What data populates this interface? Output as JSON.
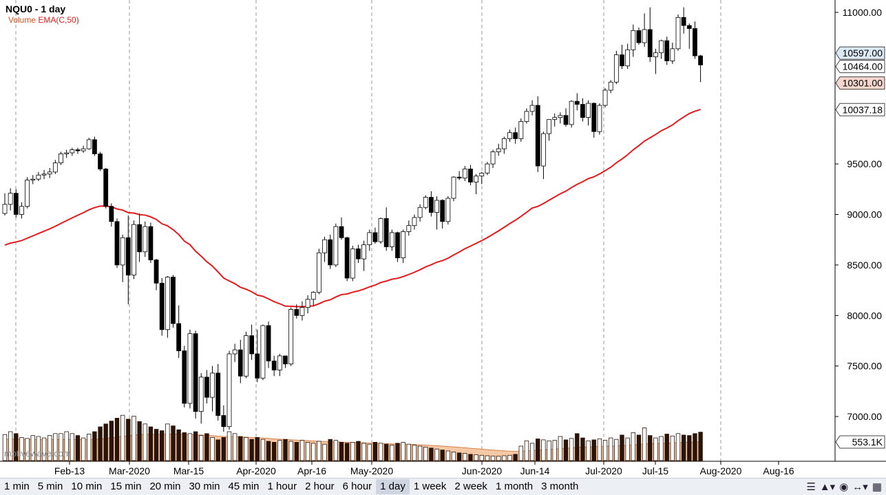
{
  "legend": {
    "symbol": "NQU0 - 1 day",
    "volume_label": "Volume",
    "ema_label": "EMA(C,50)"
  },
  "watermark": "motivewave.com",
  "colors": {
    "ema": "#e8191c",
    "volume_fill": "#f6c9a6",
    "volume_line": "#d2814a",
    "volume_bar": "#2b1407",
    "up_body": "#ffffff",
    "down_body": "#000000",
    "price_badge_blue": "#dbe8f6",
    "price_badge_red": "#f6d5cd",
    "grid": "#9a9a9a"
  },
  "toolbar": {
    "timeframes": [
      "1 min",
      "5 min",
      "10 min",
      "15 min",
      "20 min",
      "30 min",
      "45 min",
      "1 hour",
      "2 hour",
      "6 hour",
      "1 day",
      "1 week",
      "2 week",
      "1 month",
      "3 month"
    ],
    "active": "1 day",
    "icons": [
      "menu-icon",
      "chart-type-icon",
      "eye-icon",
      "scale-icon",
      "toolbox-icon"
    ]
  },
  "chart_data": {
    "type": "candlestick",
    "title": "NQU0 - 1 day",
    "ylim": [
      6800,
      11100
    ],
    "y_ticks": [
      "11000.00",
      "9500.00",
      "9000.00",
      "8500.00",
      "8000.00",
      "7500.00",
      "7000.00"
    ],
    "x_tick_labels": [
      "Feb-13",
      "Mar-2020",
      "Mar-15",
      "Apr-2020",
      "Apr-16",
      "May-2020",
      "Jun-2020",
      "Jun-14",
      "Jul-2020",
      "Jul-15",
      "Aug-2020",
      "Aug-16"
    ],
    "price_badges": [
      {
        "label": "10597.00",
        "value": 10597,
        "style": "blue"
      },
      {
        "label": "10464.00",
        "value": 10464,
        "style": "white"
      },
      {
        "label": "10301.00",
        "value": 10301,
        "style": "red"
      },
      {
        "label": "10037.18",
        "value": 10037.18,
        "style": "white"
      }
    ],
    "volume_badge": "553.1K",
    "candles": [
      [
        9010,
        9210,
        8990,
        9100
      ],
      [
        9100,
        9260,
        9040,
        9210
      ],
      [
        9210,
        9250,
        8970,
        9000
      ],
      [
        9000,
        9120,
        8960,
        9080
      ],
      [
        9080,
        9370,
        9060,
        9340
      ],
      [
        9340,
        9390,
        9300,
        9350
      ],
      [
        9350,
        9420,
        9330,
        9390
      ],
      [
        9390,
        9440,
        9350,
        9400
      ],
      [
        9400,
        9460,
        9360,
        9420
      ],
      [
        9420,
        9540,
        9400,
        9510
      ],
      [
        9510,
        9620,
        9490,
        9600
      ],
      [
        9600,
        9640,
        9560,
        9610
      ],
      [
        9610,
        9660,
        9580,
        9640
      ],
      [
        9640,
        9660,
        9600,
        9630
      ],
      [
        9630,
        9680,
        9610,
        9650
      ],
      [
        9650,
        9760,
        9640,
        9740
      ],
      [
        9740,
        9770,
        9580,
        9600
      ],
      [
        9600,
        9620,
        9430,
        9450
      ],
      [
        9450,
        9460,
        9060,
        9080
      ],
      [
        9080,
        9110,
        8880,
        8930
      ],
      [
        8930,
        8960,
        8470,
        8500
      ],
      [
        8500,
        8800,
        8330,
        8770
      ],
      [
        8770,
        8990,
        8110,
        8400
      ],
      [
        8400,
        8940,
        8360,
        8900
      ],
      [
        8900,
        9010,
        8530,
        8630
      ],
      [
        8630,
        8930,
        8580,
        8880
      ],
      [
        8880,
        8920,
        8520,
        8550
      ],
      [
        8550,
        8560,
        8250,
        8320
      ],
      [
        8320,
        8370,
        7800,
        7860
      ],
      [
        7860,
        8390,
        7780,
        8380
      ],
      [
        8380,
        8400,
        7880,
        7920
      ],
      [
        7920,
        8100,
        7580,
        7650
      ],
      [
        7650,
        7700,
        7090,
        7130
      ],
      [
        7130,
        7860,
        7080,
        7820
      ],
      [
        7820,
        7850,
        6980,
        7050
      ],
      [
        7050,
        7430,
        6930,
        7390
      ],
      [
        7390,
        7460,
        7130,
        7190
      ],
      [
        7190,
        7500,
        7050,
        7430
      ],
      [
        7430,
        7520,
        6960,
        7010
      ],
      [
        7010,
        7110,
        6850,
        6900
      ],
      [
        6900,
        7650,
        6870,
        7620
      ],
      [
        7620,
        7720,
        7540,
        7660
      ],
      [
        7660,
        7760,
        7330,
        7400
      ],
      [
        7400,
        7840,
        7380,
        7800
      ],
      [
        7800,
        7910,
        7560,
        7620
      ],
      [
        7620,
        7860,
        7340,
        7380
      ],
      [
        7380,
        7910,
        7360,
        7900
      ],
      [
        7900,
        7940,
        7480,
        7550
      ],
      [
        7550,
        7600,
        7400,
        7460
      ],
      [
        7460,
        7620,
        7400,
        7600
      ],
      [
        7600,
        7560,
        7480,
        7520
      ],
      [
        7520,
        8080,
        7500,
        8060
      ],
      [
        8060,
        8110,
        7970,
        8000
      ],
      [
        8000,
        8140,
        7950,
        8080
      ],
      [
        8080,
        8200,
        8020,
        8160
      ],
      [
        8160,
        8240,
        8100,
        8230
      ],
      [
        8230,
        8660,
        8210,
        8620
      ],
      [
        8620,
        8780,
        8530,
        8750
      ],
      [
        8750,
        8800,
        8460,
        8500
      ],
      [
        8500,
        8910,
        8480,
        8880
      ],
      [
        8880,
        8970,
        8750,
        8770
      ],
      [
        8770,
        8780,
        8340,
        8370
      ],
      [
        8370,
        8690,
        8340,
        8660
      ],
      [
        8660,
        8700,
        8520,
        8560
      ],
      [
        8560,
        8740,
        8440,
        8700
      ],
      [
        8700,
        8850,
        8640,
        8820
      ],
      [
        8820,
        8870,
        8710,
        8730
      ],
      [
        8730,
        8970,
        8710,
        8960
      ],
      [
        8960,
        9070,
        8640,
        8680
      ],
      [
        8680,
        8850,
        8640,
        8820
      ],
      [
        8820,
        8830,
        8530,
        8570
      ],
      [
        8570,
        8850,
        8520,
        8830
      ],
      [
        8830,
        8940,
        8790,
        8890
      ],
      [
        8890,
        9000,
        8850,
        8970
      ],
      [
        8970,
        9100,
        8930,
        9070
      ],
      [
        9070,
        9190,
        9050,
        9170
      ],
      [
        9170,
        9230,
        8980,
        9020
      ],
      [
        9020,
        9180,
        8850,
        9140
      ],
      [
        9140,
        9150,
        8860,
        8930
      ],
      [
        8930,
        9180,
        8900,
        9160
      ],
      [
        9160,
        9380,
        9130,
        9370
      ],
      [
        9370,
        9430,
        9340,
        9360
      ],
      [
        9360,
        9480,
        9330,
        9450
      ],
      [
        9450,
        9490,
        9290,
        9320
      ],
      [
        9320,
        9400,
        9200,
        9380
      ],
      [
        9380,
        9420,
        9300,
        9410
      ],
      [
        9410,
        9520,
        9390,
        9500
      ],
      [
        9500,
        9640,
        9460,
        9620
      ],
      [
        9620,
        9700,
        9580,
        9650
      ],
      [
        9650,
        9770,
        9600,
        9750
      ],
      [
        9750,
        9840,
        9720,
        9810
      ],
      [
        9810,
        9860,
        9700,
        9750
      ],
      [
        9750,
        9950,
        9720,
        9920
      ],
      [
        9920,
        10050,
        9900,
        10020
      ],
      [
        10020,
        10130,
        9980,
        10080
      ],
      [
        10080,
        10170,
        9420,
        9480
      ],
      [
        9480,
        9820,
        9350,
        9800
      ],
      [
        9800,
        9940,
        9730,
        9940
      ],
      [
        9940,
        10000,
        9870,
        9960
      ],
      [
        9960,
        10010,
        9900,
        9980
      ],
      [
        9980,
        10050,
        9870,
        9890
      ],
      [
        9890,
        10130,
        9860,
        10120
      ],
      [
        10120,
        10200,
        10030,
        10090
      ],
      [
        10090,
        10150,
        9920,
        9960
      ],
      [
        9960,
        10130,
        9880,
        10100
      ],
      [
        10100,
        10110,
        9760,
        9820
      ],
      [
        9820,
        10100,
        9790,
        10080
      ],
      [
        10080,
        10250,
        10060,
        10230
      ],
      [
        10230,
        10330,
        10200,
        10310
      ],
      [
        10310,
        10620,
        10290,
        10580
      ],
      [
        10580,
        10680,
        10440,
        10470
      ],
      [
        10470,
        10690,
        10440,
        10630
      ],
      [
        10630,
        10880,
        10560,
        10820
      ],
      [
        10820,
        10850,
        10680,
        10700
      ],
      [
        10700,
        10990,
        10660,
        10830
      ],
      [
        10830,
        11050,
        10510,
        10560
      ],
      [
        10560,
        10640,
        10390,
        10600
      ],
      [
        10600,
        10730,
        10540,
        10720
      ],
      [
        10720,
        10760,
        10480,
        10520
      ],
      [
        10520,
        10700,
        10490,
        10640
      ],
      [
        10640,
        10980,
        10620,
        10950
      ],
      [
        10950,
        11050,
        10790,
        10870
      ],
      [
        10870,
        10890,
        10640,
        10840
      ],
      [
        10840,
        10910,
        10540,
        10570
      ],
      [
        10570,
        10580,
        10310,
        10480
      ]
    ],
    "volume_scale_max": 1000,
    "volumes": [
      540,
      600,
      560,
      480,
      460,
      520,
      500,
      470,
      520,
      560,
      560,
      600,
      560,
      520,
      470,
      550,
      600,
      700,
      760,
      820,
      880,
      940,
      860,
      920,
      810,
      760,
      700,
      650,
      620,
      760,
      720,
      640,
      580,
      560,
      600,
      520,
      560,
      480,
      430,
      480,
      600,
      560,
      500,
      480,
      440,
      480,
      440,
      400,
      380,
      420,
      440,
      400,
      380,
      420,
      380,
      360,
      400,
      340,
      440,
      420,
      380,
      360,
      380,
      400,
      360,
      340,
      380,
      360,
      340,
      320,
      360,
      380,
      340,
      320,
      300,
      280,
      260,
      240,
      220,
      200,
      180,
      160,
      150,
      130,
      120,
      110,
      100,
      95,
      90,
      100,
      110,
      130,
      300,
      410,
      360,
      450,
      430,
      410,
      420,
      500,
      430,
      460,
      560,
      470,
      410,
      430,
      450,
      420,
      470,
      440,
      530,
      470,
      580,
      530,
      680,
      520,
      470,
      500,
      550,
      510,
      560,
      530,
      520,
      560,
      590
    ]
  }
}
